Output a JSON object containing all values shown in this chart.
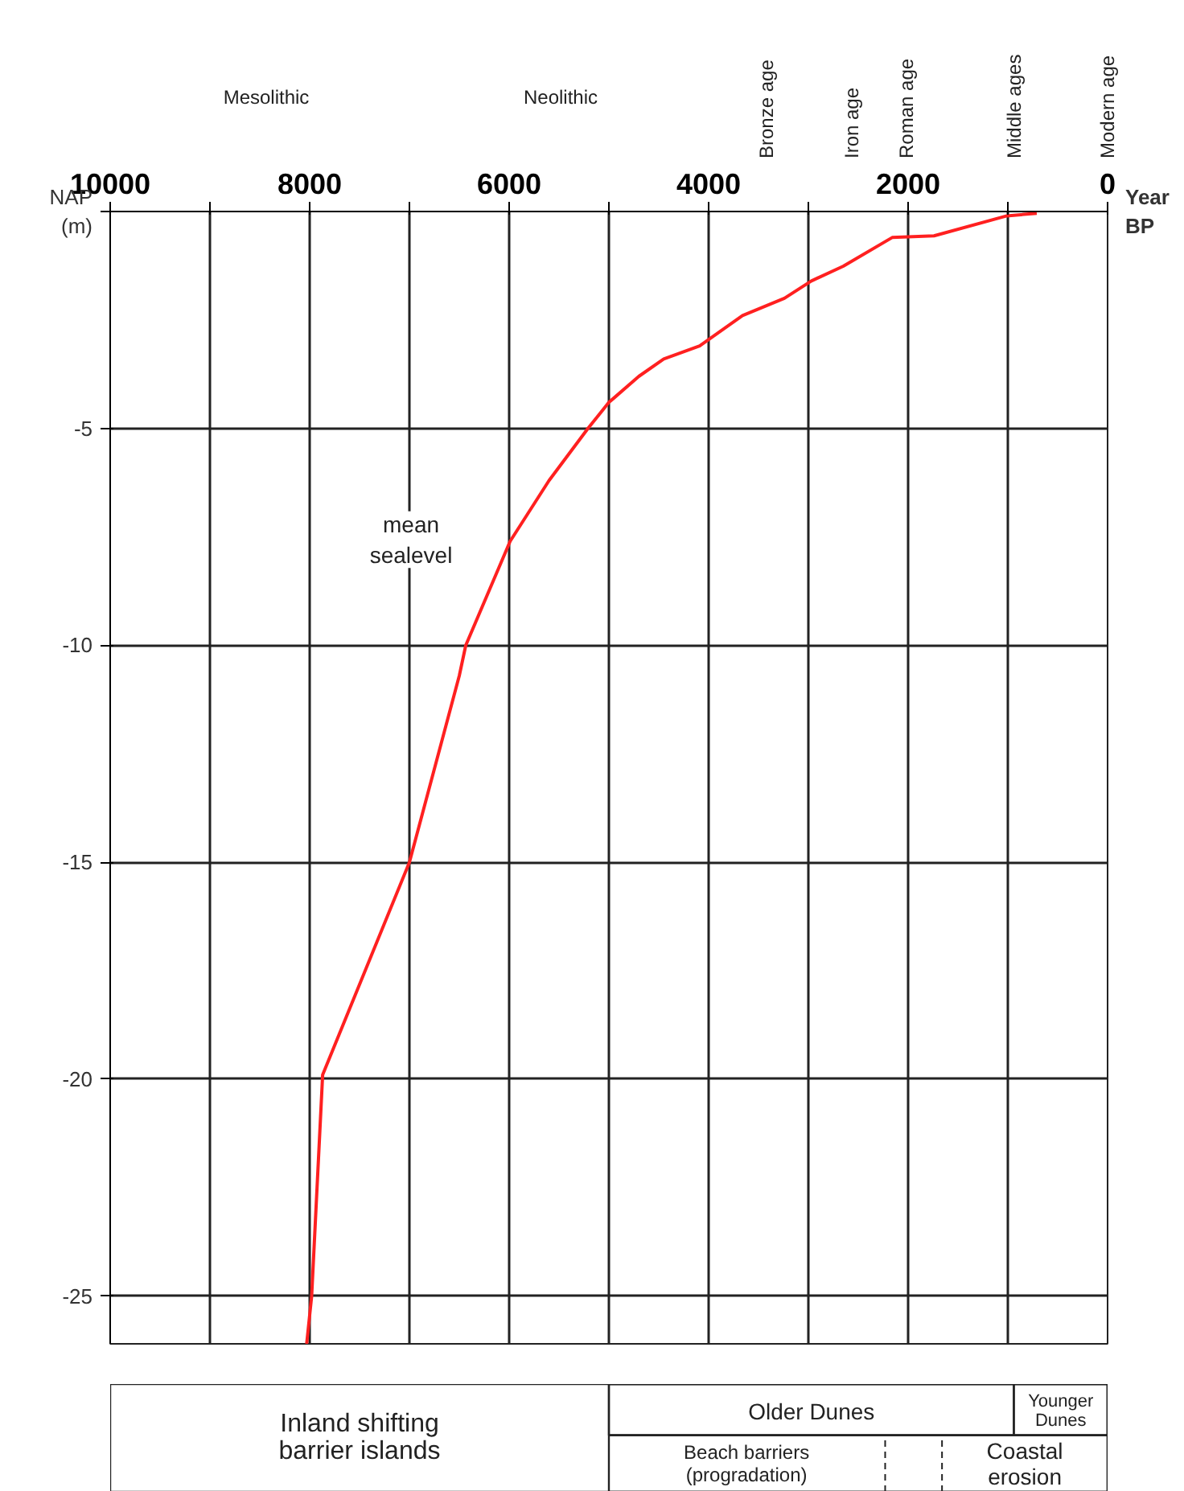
{
  "chart_data": {
    "type": "line",
    "xlabel": "Year BP",
    "ylabel": "NAP (m)",
    "xlim": [
      10000,
      0
    ],
    "ylim": [
      -26.1,
      0
    ],
    "xticks": [
      10000,
      {
        "value": 9000,
        "label": null
      },
      8000,
      {
        "value": 7000,
        "label": null
      },
      6000,
      {
        "value": 5000,
        "label": null
      },
      4000,
      {
        "value": 3000,
        "label": null
      },
      2000,
      {
        "value": 1000,
        "label": null
      },
      0
    ],
    "yticks": [
      {
        "value": 0,
        "label": null
      },
      -5,
      -10,
      -15,
      -20,
      -25
    ],
    "grid": true,
    "marker": "none",
    "line_style": "solid",
    "series": [
      {
        "color": "#ff2020",
        "x": [
          8030,
          7980,
          7870,
          7000,
          6500,
          6435,
          5990,
          5600,
          5210,
          5000,
          4700,
          4450,
          4090,
          3660,
          3240,
          2970,
          2650,
          2160,
          1740,
          1010,
          710
        ],
        "values": [
          -26.1,
          -25,
          -19.9,
          -15,
          -10.7,
          -10,
          -7.6,
          -6.2,
          -5.0,
          -4.4,
          -3.8,
          -3.4,
          -3.1,
          -2.4,
          -2.0,
          -1.6,
          -1.26,
          -0.6,
          -0.56,
          -0.1,
          -0.04
        ]
      }
    ],
    "annotations": [
      "Mesolithic",
      "Neolithic",
      "Bronze age",
      "Iron age",
      "Roman age",
      "Middle ages",
      "Modern age",
      "mean\nsealevel",
      "Inland shifting\nbarrier islands",
      "Older Dunes",
      "Younger\nDunes",
      "Beach barriers\n(progradation)",
      "Coastal\nerosion"
    ]
  }
}
